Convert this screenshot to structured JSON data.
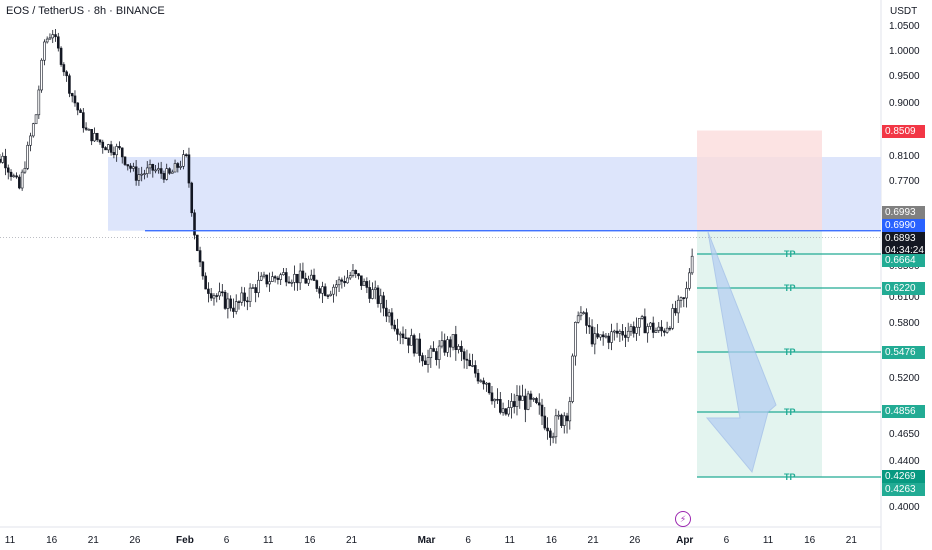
{
  "header": {
    "title": "EOS / TetherUS · 8h · BINANCE"
  },
  "price_axis": {
    "unit": "USDT",
    "ticks": [
      "1.0500",
      "1.0000",
      "0.9500",
      "0.9000",
      "0.8100",
      "0.7700",
      "0.6500",
      "0.6100",
      "0.5800",
      "0.5200",
      "0.4650",
      "0.4400",
      "0.4000"
    ]
  },
  "time_axis": {
    "ticks": [
      {
        "label": "11",
        "bold": false
      },
      {
        "label": "16",
        "bold": false
      },
      {
        "label": "21",
        "bold": false
      },
      {
        "label": "26",
        "bold": false
      },
      {
        "label": "Feb",
        "bold": true
      },
      {
        "label": "6",
        "bold": false
      },
      {
        "label": "11",
        "bold": false
      },
      {
        "label": "16",
        "bold": false
      },
      {
        "label": "21",
        "bold": false
      },
      {
        "label": "Mar",
        "bold": true
      },
      {
        "label": "6",
        "bold": false
      },
      {
        "label": "11",
        "bold": false
      },
      {
        "label": "16",
        "bold": false
      },
      {
        "label": "21",
        "bold": false
      },
      {
        "label": "26",
        "bold": false
      },
      {
        "label": "Apr",
        "bold": true
      },
      {
        "label": "6",
        "bold": false
      },
      {
        "label": "11",
        "bold": false
      },
      {
        "label": "16",
        "bold": false
      },
      {
        "label": "21",
        "bold": false
      }
    ]
  },
  "price_labels": {
    "stop": "0.8509",
    "last_close": "0.6993",
    "entry": "0.6990",
    "current_price": "0.6893",
    "countdown": "04:34:24",
    "tp1": "0.6664",
    "tp2": "0.6220",
    "tp3": "0.5476",
    "tp4": "0.4856",
    "tp5": "0.4269",
    "low": "0.4263"
  },
  "tp_label": "TP",
  "colors": {
    "candle": "#131722",
    "zone": "#dde5fb",
    "entry_line": "#2962ff",
    "stop_zone": "#fbdcdc",
    "target_zone": "#e3f4ef",
    "tp_line": "#22ab94",
    "stop_label": "#f23645",
    "grey_label": "#808080",
    "black_label": "#131722",
    "tp_label_bg": "#22ab94",
    "tp_final_bg": "#089981",
    "arrow": "#b3cdf3"
  },
  "icons": {
    "flash": "lightning-icon"
  },
  "chart_data": {
    "type": "candlestick",
    "symbol": "EOS / TetherUS",
    "interval": "8h",
    "exchange": "BINANCE",
    "ylim": [
      0.4,
      1.05
    ],
    "price_path": [
      [
        "2024-01-08",
        0.79
      ],
      [
        "2024-01-10",
        0.81
      ],
      [
        "2024-01-12",
        0.76
      ],
      [
        "2024-01-14",
        0.88
      ],
      [
        "2024-01-15",
        1.02
      ],
      [
        "2024-01-16",
        1.04
      ],
      [
        "2024-01-18",
        0.93
      ],
      [
        "2024-01-20",
        0.85
      ],
      [
        "2024-01-22",
        0.83
      ],
      [
        "2024-01-24",
        0.82
      ],
      [
        "2024-01-26",
        0.78
      ],
      [
        "2024-01-28",
        0.79
      ],
      [
        "2024-01-30",
        0.78
      ],
      [
        "2024-02-01",
        0.81
      ],
      [
        "2024-02-02",
        0.7
      ],
      [
        "2024-02-03",
        0.63
      ],
      [
        "2024-02-05",
        0.61
      ],
      [
        "2024-02-07",
        0.6
      ],
      [
        "2024-02-10",
        0.63
      ],
      [
        "2024-02-13",
        0.64
      ],
      [
        "2024-02-16",
        0.63
      ],
      [
        "2024-02-18",
        0.62
      ],
      [
        "2024-02-21",
        0.64
      ],
      [
        "2024-02-24",
        0.61
      ],
      [
        "2024-02-27",
        0.57
      ],
      [
        "2024-03-01",
        0.54
      ],
      [
        "2024-03-04",
        0.56
      ],
      [
        "2024-03-06",
        0.53
      ],
      [
        "2024-03-08",
        0.52
      ],
      [
        "2024-03-10",
        0.48
      ],
      [
        "2024-03-12",
        0.5
      ],
      [
        "2024-03-14",
        0.49
      ],
      [
        "2024-03-16",
        0.47
      ],
      [
        "2024-03-18",
        0.49
      ],
      [
        "2024-03-19",
        0.6
      ],
      [
        "2024-03-21",
        0.56
      ],
      [
        "2024-03-24",
        0.57
      ],
      [
        "2024-03-27",
        0.58
      ],
      [
        "2024-03-29",
        0.57
      ],
      [
        "2024-04-01",
        0.61
      ],
      [
        "2024-04-02",
        0.69
      ]
    ],
    "supply_zone": [
      0.6993,
      0.81
    ],
    "trade_plan": {
      "entry": 0.699,
      "stop": 0.8509,
      "targets": [
        0.6664,
        0.622,
        0.5476,
        0.4856,
        0.4269
      ]
    }
  }
}
